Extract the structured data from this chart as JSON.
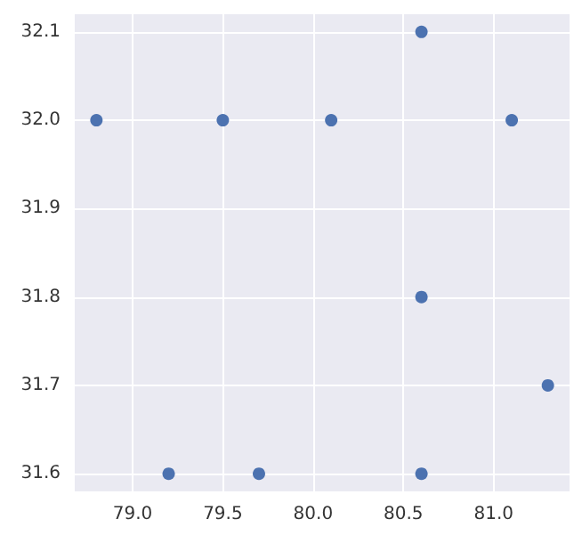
{
  "chart_data": {
    "type": "scatter",
    "x": [
      78.8,
      79.2,
      79.5,
      79.7,
      80.1,
      80.6,
      80.6,
      80.6,
      81.1,
      81.3
    ],
    "values": [
      32.0,
      31.6,
      32.0,
      31.6,
      32.0,
      32.1,
      31.8,
      31.6,
      32.0,
      31.7
    ],
    "color": "#4c72b0",
    "marker": "circle",
    "grid": true,
    "xlim": [
      78.68,
      81.42
    ],
    "xticks": [
      {
        "value": 79,
        "label": "79.0"
      },
      {
        "value": 79.5,
        "label": "79.5"
      },
      {
        "value": 80,
        "label": "80.0"
      },
      {
        "value": 80.5,
        "label": "80.5"
      },
      {
        "value": 81,
        "label": "81.0"
      }
    ],
    "ylim": [
      31.58,
      32.12
    ],
    "yticks": [
      {
        "value": 31.6,
        "label": "31.6"
      },
      {
        "value": 31.7,
        "label": "31.7"
      },
      {
        "value": 31.8,
        "label": "31.8"
      },
      {
        "value": 31.9,
        "label": "31.9"
      },
      {
        "value": 32,
        "label": "32.0"
      },
      {
        "value": 32.1,
        "label": "32.1"
      }
    ]
  }
}
